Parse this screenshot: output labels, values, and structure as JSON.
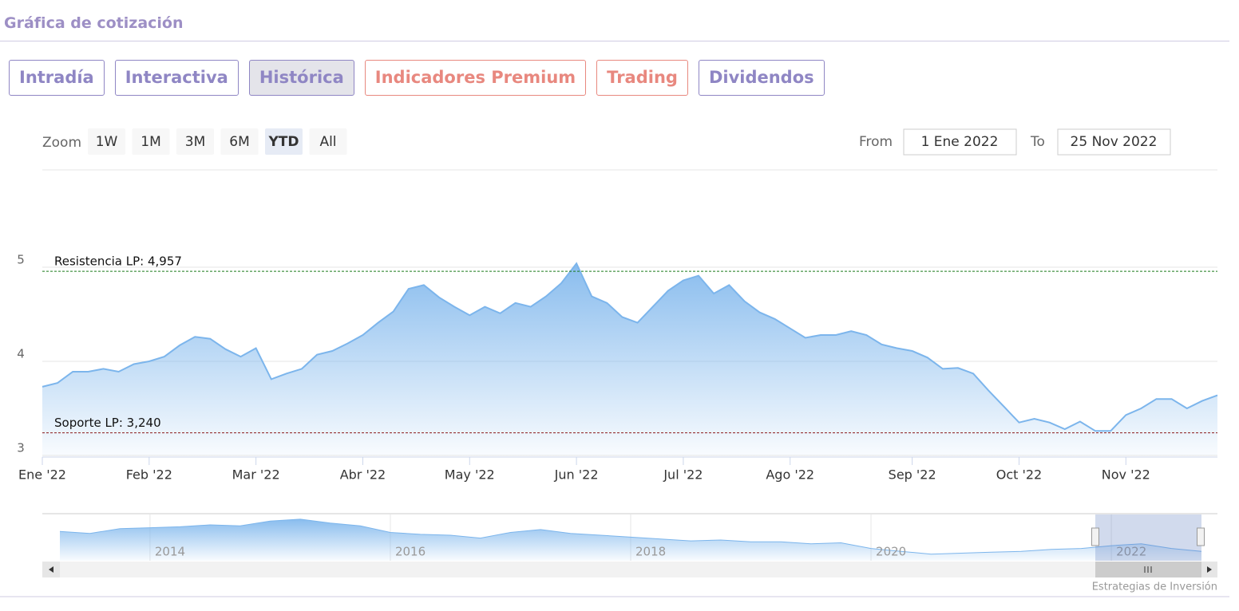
{
  "header": {
    "title": "Gráfica de cotización"
  },
  "tabs": [
    {
      "label": "Intradía",
      "color": "#8f86c4",
      "active": false
    },
    {
      "label": "Interactiva",
      "color": "#8f86c4",
      "active": false
    },
    {
      "label": "Histórica",
      "color": "#8f86c4",
      "active": true
    },
    {
      "label": "Indicadores Premium",
      "color": "#e8887f",
      "active": false
    },
    {
      "label": "Trading",
      "color": "#e8887f",
      "active": false
    },
    {
      "label": "Dividendos",
      "color": "#8f86c4",
      "active": false
    }
  ],
  "range_selector": {
    "zoom_label": "Zoom",
    "buttons": [
      {
        "label": "1W",
        "active": false
      },
      {
        "label": "1M",
        "active": false
      },
      {
        "label": "3M",
        "active": false
      },
      {
        "label": "6M",
        "active": false
      },
      {
        "label": "YTD",
        "active": true
      },
      {
        "label": "All",
        "active": false
      }
    ],
    "from_label": "From",
    "from_value": "1 Ene 2022",
    "to_label": "To",
    "to_value": "25 Nov 2022"
  },
  "chart_data": [
    {
      "type": "area",
      "color": "#7cb5ec",
      "grid": true,
      "categories": [
        "Ene '22",
        null,
        null,
        null,
        null,
        null,
        null,
        "Feb '22",
        null,
        null,
        null,
        null,
        null,
        null,
        "Mar '22",
        null,
        null,
        null,
        null,
        null,
        null,
        "Abr '22",
        null,
        null,
        null,
        null,
        null,
        null,
        "May '22",
        null,
        null,
        null,
        null,
        null,
        null,
        "Jun '22",
        null,
        null,
        null,
        null,
        null,
        null,
        "Jul '22",
        null,
        null,
        null,
        null,
        null,
        null,
        "Ago '22",
        null,
        null,
        null,
        null,
        null,
        null,
        null,
        "Sep '22",
        null,
        null,
        null,
        null,
        null,
        null,
        "Oct '22",
        null,
        null,
        null,
        null,
        null,
        null,
        "Nov '22",
        null,
        null,
        null,
        null,
        null,
        null
      ],
      "values": [
        3.73,
        3.77,
        3.89,
        3.89,
        3.92,
        3.89,
        3.97,
        4.0,
        4.05,
        4.17,
        4.26,
        4.24,
        4.13,
        4.05,
        4.14,
        3.81,
        3.87,
        3.92,
        4.07,
        4.11,
        4.19,
        4.28,
        4.41,
        4.53,
        4.77,
        4.81,
        4.68,
        4.58,
        4.49,
        4.58,
        4.51,
        4.62,
        4.58,
        4.69,
        4.83,
        5.04,
        4.69,
        4.62,
        4.47,
        4.41,
        4.58,
        4.75,
        4.86,
        4.91,
        4.72,
        4.81,
        4.64,
        4.52,
        4.45,
        4.35,
        4.25,
        4.28,
        4.28,
        4.32,
        4.28,
        4.18,
        4.14,
        4.11,
        4.04,
        3.92,
        3.93,
        3.87,
        3.69,
        3.52,
        3.35,
        3.39,
        3.35,
        3.28,
        3.36,
        3.26,
        3.26,
        3.43,
        3.5,
        3.6,
        3.6,
        3.5,
        3.58,
        3.64
      ],
      "ylim": [
        3,
        6
      ],
      "yticks": [
        3,
        4,
        5
      ],
      "plot_lines": [
        {
          "label": "Resistencia LP: 4,957",
          "value": 4.957,
          "color": "#1a7a1a"
        },
        {
          "label": "Soporte LP: 3,240",
          "value": 3.24,
          "color": "#8b1a1a"
        }
      ]
    },
    {
      "type": "area",
      "color": "#7cb5ec",
      "categories": [
        null,
        null,
        null,
        "2014",
        null,
        null,
        null,
        null,
        null,
        null,
        null,
        "2016",
        null,
        null,
        null,
        null,
        null,
        null,
        null,
        "2018",
        null,
        null,
        null,
        null,
        null,
        null,
        null,
        "2020",
        null,
        null,
        null,
        null,
        null,
        null,
        null,
        "2022",
        null,
        null,
        null
      ],
      "values": [
        5.7,
        5.5,
        6.0,
        6.1,
        6.2,
        6.4,
        6.3,
        6.8,
        7.0,
        6.6,
        6.3,
        5.6,
        5.4,
        5.3,
        5.0,
        5.6,
        5.9,
        5.5,
        5.3,
        5.1,
        4.9,
        4.7,
        4.8,
        4.6,
        4.6,
        4.4,
        4.5,
        3.9,
        3.6,
        3.3,
        3.4,
        3.5,
        3.6,
        3.8,
        3.9,
        4.2,
        4.4,
        3.9,
        3.6
      ],
      "ylim": [
        2.6,
        7.5
      ]
    }
  ],
  "credit": "Estrategias de Inversión"
}
